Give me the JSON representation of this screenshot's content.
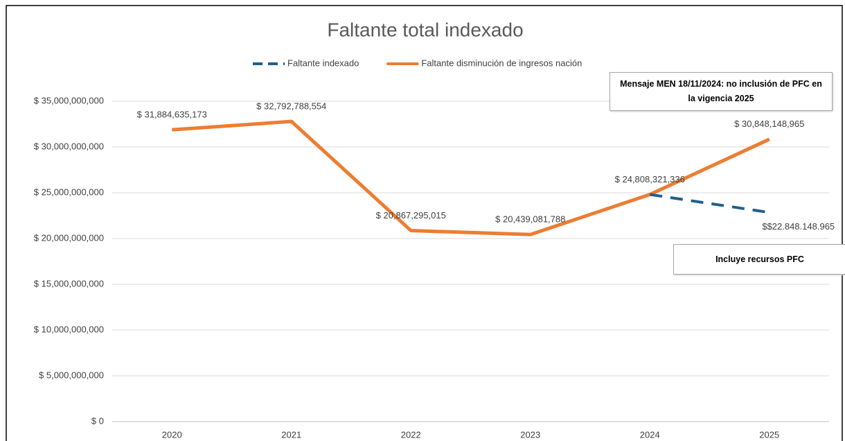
{
  "chart_data": {
    "type": "line",
    "title": "Faltante total indexado",
    "categories": [
      "2020",
      "2021",
      "2022",
      "2023",
      "2024",
      "2025"
    ],
    "series": [
      {
        "name": "Faltante indexado",
        "color": "#1f5f8b",
        "dashed": true,
        "values": [
          null,
          null,
          null,
          null,
          24808321336,
          22848148965
        ],
        "value_labels": [
          null,
          null,
          null,
          null,
          null,
          "$$22.848.148.965"
        ]
      },
      {
        "name": "Faltante disminución de ingresos nación",
        "color": "#ed7d31",
        "dashed": false,
        "values": [
          31884635173,
          32792788554,
          20867295015,
          20439081788,
          24808321336,
          30848148965
        ],
        "value_labels": [
          "$ 31,884,635,173",
          "$ 32,792,788,554",
          "$ 20,867,295,015",
          "$ 20,439,081,788",
          "$ 24,808,321,336",
          "$ 30,848,148,965"
        ]
      }
    ],
    "ylim": [
      0,
      35000000000
    ],
    "yticks": [
      {
        "value": 0,
        "label": "$ 0"
      },
      {
        "value": 5000000000,
        "label": "$ 5,000,000,000"
      },
      {
        "value": 10000000000,
        "label": "$ 10,000,000,000"
      },
      {
        "value": 15000000000,
        "label": "$ 15,000,000,000"
      },
      {
        "value": 20000000000,
        "label": "$ 20,000,000,000"
      },
      {
        "value": 25000000000,
        "label": "$ 25,000,000,000"
      },
      {
        "value": 30000000000,
        "label": "$ 30,000,000,000"
      },
      {
        "value": 35000000000,
        "label": "$ 35,000,000,000"
      }
    ],
    "grid": true,
    "legend": "top",
    "annotations": [
      {
        "text": "Mensaje MEN 18/11/2024: no inclusión de PFC en la vigencia 2025"
      },
      {
        "text": "Incluye recursos PFC"
      }
    ]
  }
}
